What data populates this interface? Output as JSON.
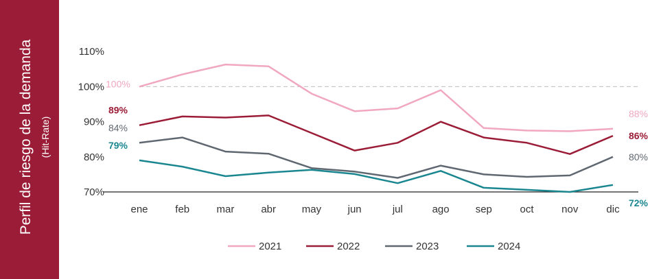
{
  "side_panel": {
    "title": "Perfil de riesgo de la demanda",
    "subtitle": "(Hit-Rate)",
    "color": "#9b1c36"
  },
  "chart_data": {
    "type": "line",
    "x": [
      "ene",
      "feb",
      "mar",
      "abr",
      "may",
      "jun",
      "jul",
      "ago",
      "sep",
      "oct",
      "nov",
      "dic"
    ],
    "ylim": [
      70,
      110
    ],
    "yticks": [
      70,
      80,
      90,
      100,
      110
    ],
    "ytick_labels": [
      "70%",
      "80%",
      "90%",
      "100%",
      "110%"
    ],
    "reference_line": 100,
    "grid": false,
    "legend_position": "bottom",
    "series": [
      {
        "name": "2021",
        "color": "#f0a7bf",
        "values": [
          100,
          103.5,
          106.3,
          105.8,
          98,
          93,
          93.8,
          99,
          88.2,
          87.5,
          87.3,
          88
        ]
      },
      {
        "name": "2022",
        "color": "#9b1c36",
        "values": [
          89,
          91.5,
          91.2,
          91.8,
          86.8,
          81.8,
          84,
          90,
          85.5,
          84,
          80.8,
          86
        ]
      },
      {
        "name": "2023",
        "color": "#5f6770",
        "values": [
          84,
          85.5,
          81.5,
          80.9,
          76.8,
          75.8,
          74,
          77.5,
          75,
          74.3,
          74.7,
          80
        ]
      },
      {
        "name": "2024",
        "color": "#1a8690",
        "values": [
          79,
          77.2,
          74.5,
          75.5,
          76.3,
          75.1,
          72.5,
          76,
          71.2,
          70.6,
          70,
          72
        ]
      }
    ],
    "data_labels": [
      {
        "text": "100%",
        "series": "2021",
        "index": 0,
        "bold": false
      },
      {
        "text": "88%",
        "series": "2021",
        "index": 11,
        "bold": false
      },
      {
        "text": "89%",
        "series": "2022",
        "index": 0,
        "bold": true
      },
      {
        "text": "86%",
        "series": "2022",
        "index": 11,
        "bold": true
      },
      {
        "text": "84%",
        "series": "2023",
        "index": 0,
        "bold": false
      },
      {
        "text": "80%",
        "series": "2023",
        "index": 11,
        "bold": false
      },
      {
        "text": "79%",
        "series": "2024",
        "index": 0,
        "bold": true
      },
      {
        "text": "72%",
        "series": "2024",
        "index": 11,
        "bold": true
      }
    ]
  }
}
